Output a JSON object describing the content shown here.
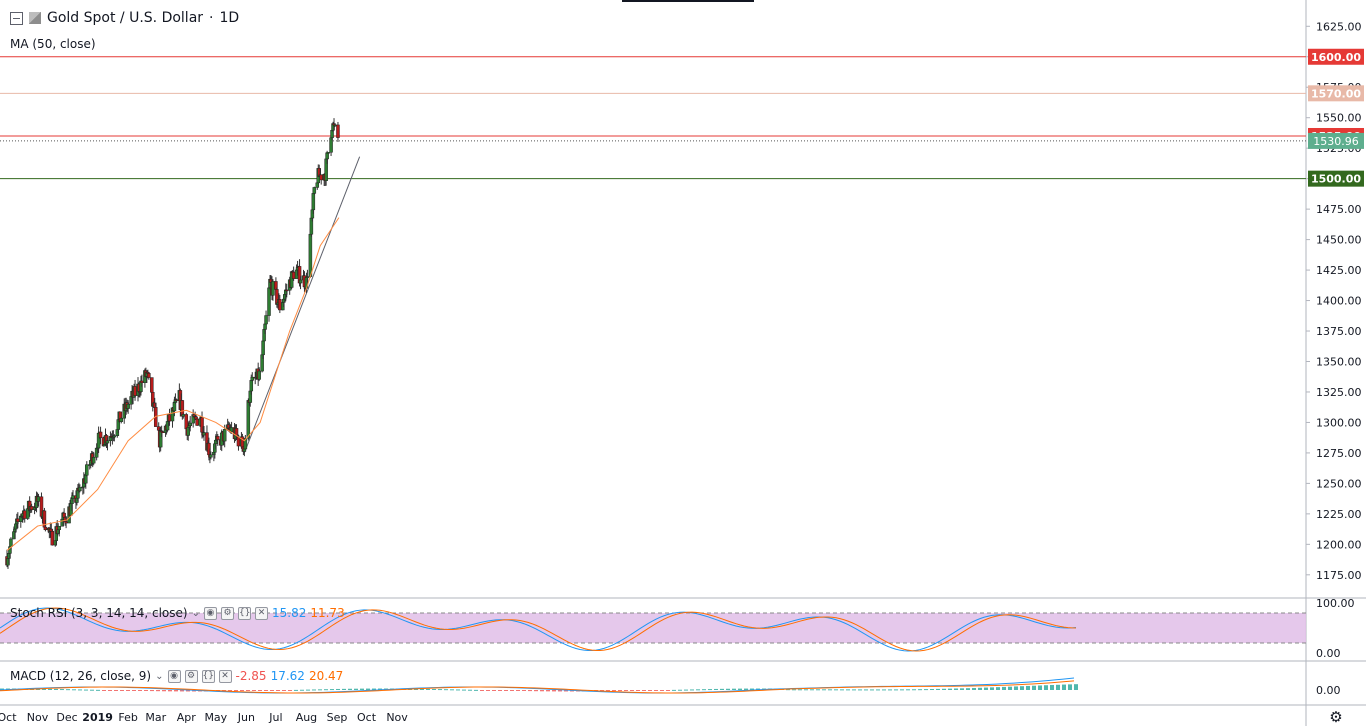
{
  "header": {
    "symbol_title": "Gold Spot / U.S. Dollar",
    "separator": "·",
    "interval": "1D",
    "ma_label": "MA (50, close)"
  },
  "stoch": {
    "label": "Stoch RSI (3, 3, 14, 14, close)",
    "k": "15.82",
    "d": "11.73"
  },
  "macd": {
    "label": "MACD (12, 26, close, 9)",
    "hist": "-2.85",
    "macd": "17.62",
    "signal": "20.47"
  },
  "colors": {
    "up": "#26a69a",
    "down": "#ef5350",
    "body_up": "#2e7d32",
    "body_down": "#b71c1c",
    "ma": "#ff8c42",
    "k_line": "#2196f3",
    "d_line": "#ff6d00",
    "stoch_band": "#e1bee7",
    "red_level": "#e53935",
    "green_level": "#33691e",
    "price_tag": "#5eae8e"
  },
  "chart_data": {
    "type": "candlestick",
    "ylim": [
      1165,
      1640
    ],
    "y_ticks": [
      1175,
      1200,
      1225,
      1250,
      1275,
      1300,
      1325,
      1350,
      1375,
      1400,
      1425,
      1450,
      1475,
      1500,
      1525,
      1550,
      1575,
      1600,
      1625
    ],
    "x_tick_labels": [
      "Oct",
      "Nov",
      "Dec",
      "2019",
      "Feb",
      "Mar",
      "Apr",
      "May",
      "Jun",
      "Jul",
      "Aug",
      "Sep",
      "Oct",
      "Nov"
    ],
    "current_price": "1530.96",
    "levels": [
      {
        "value": 1600,
        "label": "1600.00",
        "kind": "red"
      },
      {
        "value": 1570,
        "label": "1570.00",
        "kind": "faint"
      },
      {
        "value": 1535,
        "label": "1535.00",
        "kind": "red"
      },
      {
        "value": 1500,
        "label": "1500.00",
        "kind": "green"
      }
    ],
    "trendline": {
      "from": [
        "2019-05-30",
        1275
      ],
      "to": [
        "2019-09-24",
        1518
      ]
    },
    "monthly_path": [
      [
        "2018-10-01",
        1190
      ],
      [
        "2018-10-15",
        1225
      ],
      [
        "2018-11-01",
        1235
      ],
      [
        "2018-11-15",
        1205
      ],
      [
        "2018-12-01",
        1225
      ],
      [
        "2018-12-15",
        1245
      ],
      [
        "2019-01-01",
        1285
      ],
      [
        "2019-01-15",
        1290
      ],
      [
        "2019-02-01",
        1315
      ],
      [
        "2019-02-20",
        1340
      ],
      [
        "2019-03-05",
        1285
      ],
      [
        "2019-03-25",
        1320
      ],
      [
        "2019-04-01",
        1295
      ],
      [
        "2019-04-15",
        1305
      ],
      [
        "2019-04-25",
        1275
      ],
      [
        "2019-05-15",
        1295
      ],
      [
        "2019-05-30",
        1280
      ],
      [
        "2019-06-05",
        1330
      ],
      [
        "2019-06-15",
        1340
      ],
      [
        "2019-06-25",
        1415
      ],
      [
        "2019-07-05",
        1395
      ],
      [
        "2019-07-20",
        1425
      ],
      [
        "2019-08-01",
        1415
      ],
      [
        "2019-08-10",
        1500
      ],
      [
        "2019-08-20",
        1505
      ],
      [
        "2019-08-27",
        1545
      ],
      [
        "2019-09-03",
        1531
      ]
    ],
    "ma50_path": [
      [
        "2018-10-01",
        1195
      ],
      [
        "2018-11-01",
        1215
      ],
      [
        "2018-12-01",
        1220
      ],
      [
        "2019-01-01",
        1245
      ],
      [
        "2019-02-01",
        1285
      ],
      [
        "2019-03-01",
        1305
      ],
      [
        "2019-04-01",
        1310
      ],
      [
        "2019-05-01",
        1300
      ],
      [
        "2019-05-30",
        1285
      ],
      [
        "2019-06-15",
        1300
      ],
      [
        "2019-07-01",
        1340
      ],
      [
        "2019-07-15",
        1375
      ],
      [
        "2019-08-01",
        1410
      ],
      [
        "2019-08-15",
        1445
      ],
      [
        "2019-09-03",
        1468
      ]
    ],
    "stoch_ylim": [
      0,
      100
    ],
    "stoch_ticks": [
      "100.00",
      "0.00"
    ],
    "macd_ticks": [
      "0.00"
    ]
  }
}
